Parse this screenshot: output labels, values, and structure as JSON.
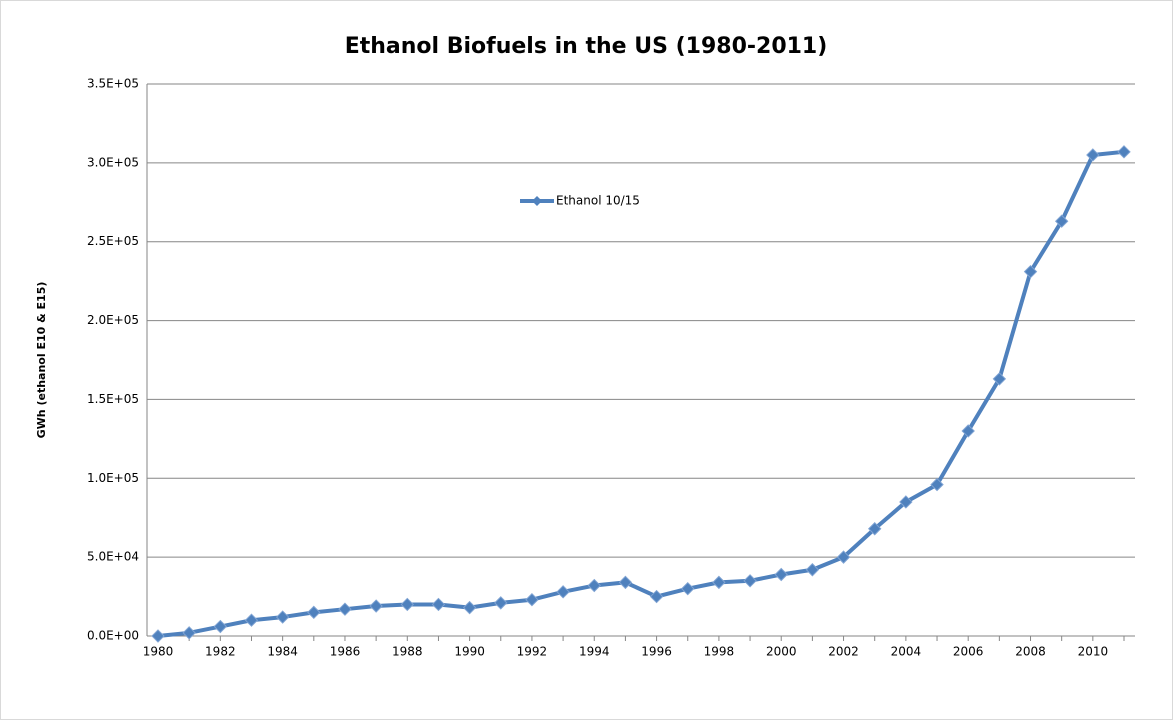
{
  "chart_data": {
    "type": "line",
    "title": "Ethanol Biofuels in the US (1980-2011)",
    "y_label": "GWh (ethanol E10 & E15)",
    "categories": [
      "1980",
      null,
      "1982",
      null,
      "1984",
      null,
      "1986",
      null,
      "1988",
      null,
      "1990",
      null,
      "1992",
      null,
      "1994",
      null,
      "1996",
      null,
      "1998",
      null,
      "2000",
      null,
      "2002",
      null,
      "2004",
      null,
      "2006",
      null,
      "2008",
      null,
      "2010",
      null
    ],
    "series": [
      {
        "name": "Ethanol 10/15",
        "color": "#4f81bd",
        "values": [
          0,
          2000,
          6000,
          10000,
          12000,
          15000,
          17000,
          19000,
          20000,
          20000,
          18000,
          21000,
          23000,
          28000,
          32000,
          34000,
          25000,
          30000,
          34000,
          35000,
          39000,
          42000,
          50000,
          68000,
          85000,
          96000,
          130000,
          163000,
          231000,
          263000,
          305000,
          307000
        ]
      }
    ],
    "ylim": [
      0,
      350000
    ],
    "yticks": [
      {
        "value": 0,
        "label": "0.0E+00"
      },
      {
        "value": 50000,
        "label": "5.0E+04"
      },
      {
        "value": 100000,
        "label": "1.0E+05"
      },
      {
        "value": 150000,
        "label": "1.5E+05"
      },
      {
        "value": 200000,
        "label": "2.0E+05"
      },
      {
        "value": 250000,
        "label": "2.5E+05"
      },
      {
        "value": 300000,
        "label": "3.0E+05"
      },
      {
        "value": 350000,
        "label": "3.5E+05"
      }
    ],
    "grid": true,
    "legend": "top"
  }
}
